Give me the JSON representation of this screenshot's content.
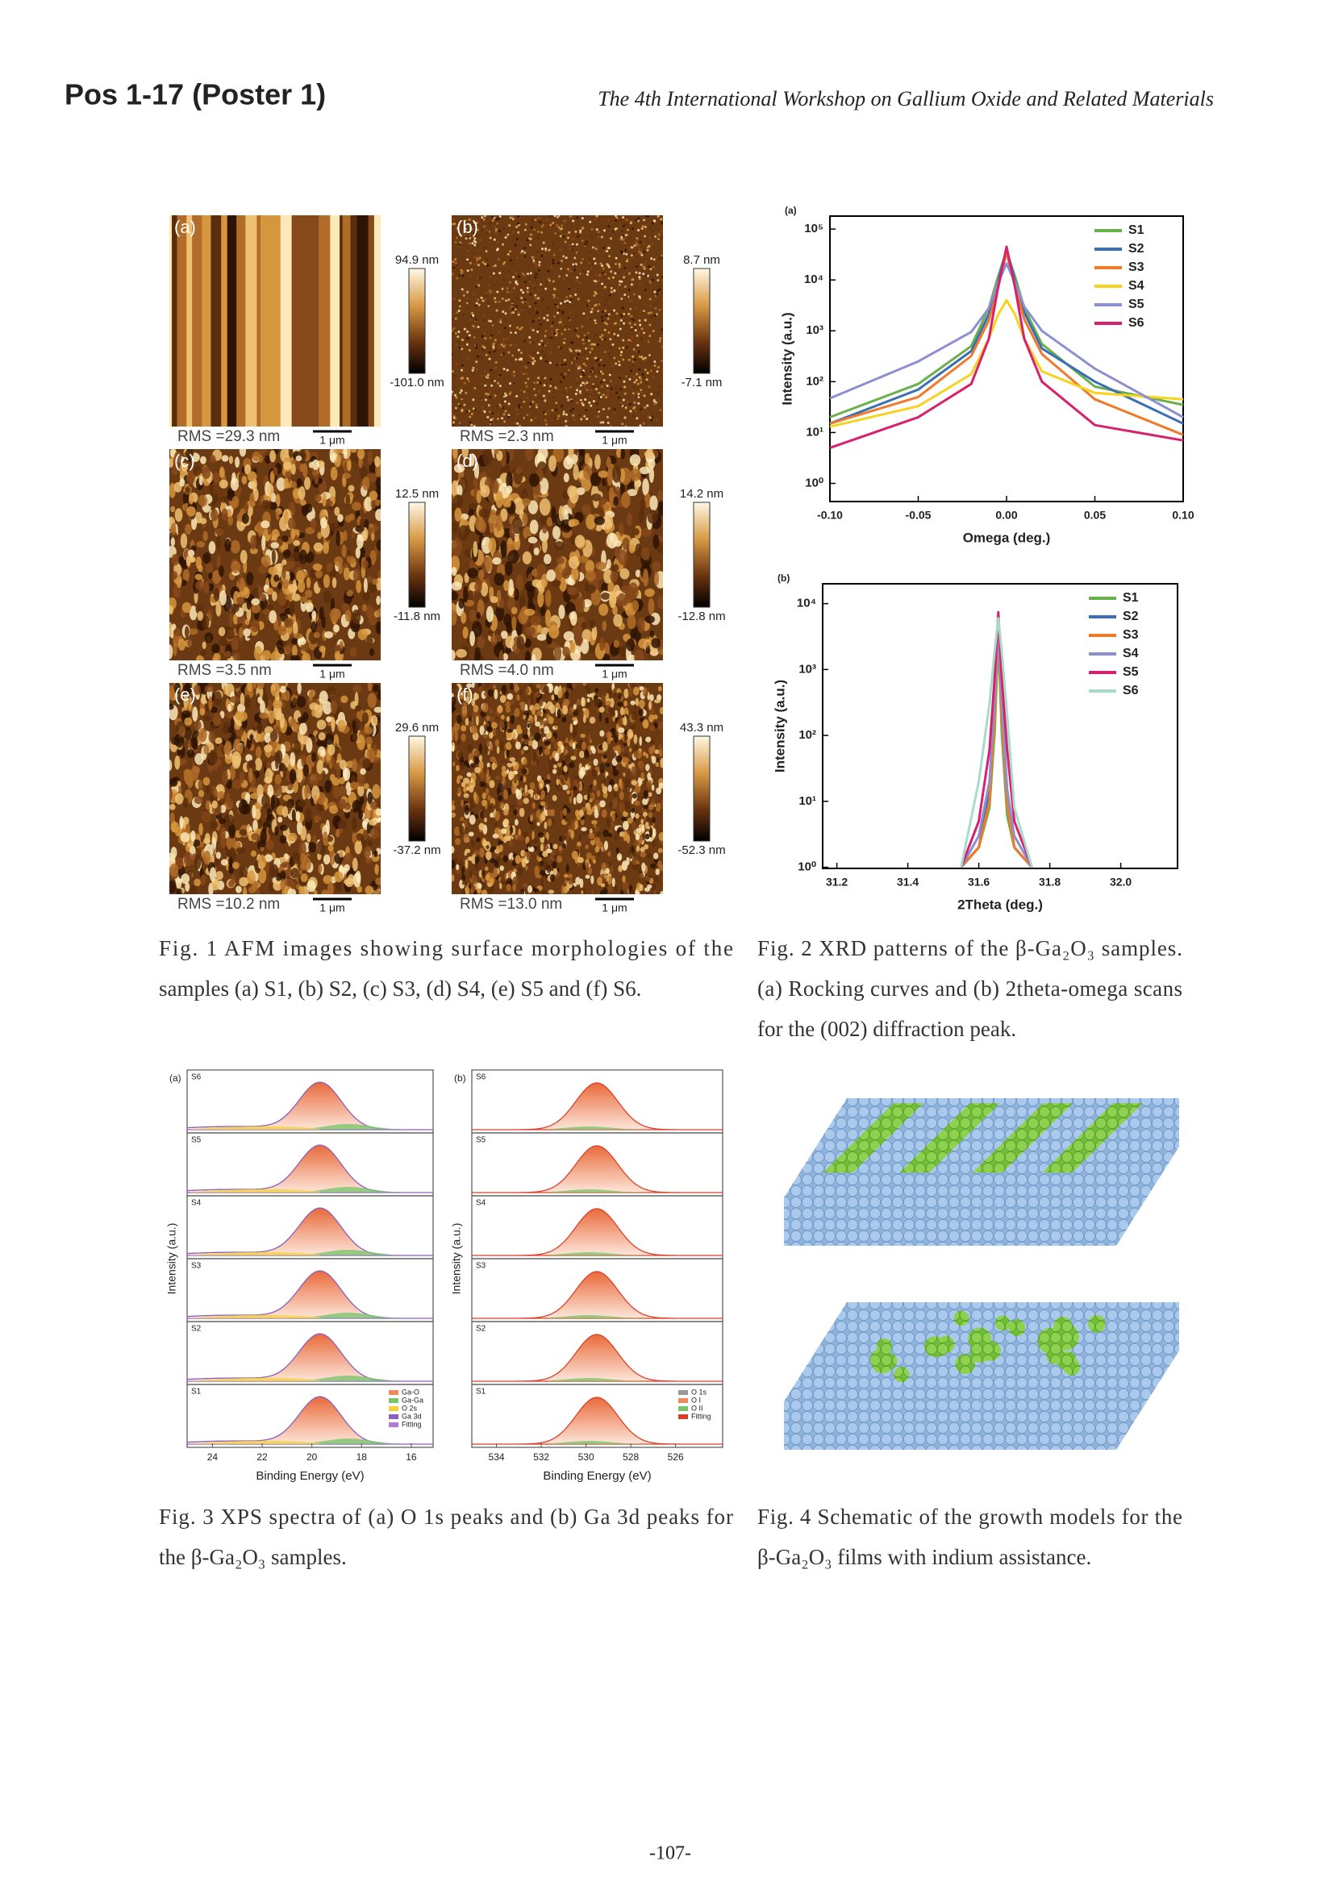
{
  "header": {
    "left": "Pos 1-17 (Poster 1)",
    "right": "The 4th International Workshop on Gallium Oxide and Related Materials"
  },
  "fig1": {
    "panels": [
      {
        "label": "(a)",
        "max": "94.9 nm",
        "min": "-101.0 nm",
        "rms": "RMS =29.3 nm",
        "scale": "1 μm"
      },
      {
        "label": "(b)",
        "max": "8.7 nm",
        "min": "-7.1 nm",
        "rms": "RMS =2.3 nm",
        "scale": "1 μm"
      },
      {
        "label": "(c)",
        "max": "12.5 nm",
        "min": "-11.8 nm",
        "rms": "RMS =3.5 nm",
        "scale": "1 μm"
      },
      {
        "label": "(d)",
        "max": "14.2 nm",
        "min": "-12.8 nm",
        "rms": "RMS =4.0 nm",
        "scale": "1 μm"
      },
      {
        "label": "(e)",
        "max": "29.6 nm",
        "min": "-37.2 nm",
        "rms": "RMS =10.2 nm",
        "scale": "1 μm"
      },
      {
        "label": "(f)",
        "max": "43.3 nm",
        "min": "-52.3 nm",
        "rms": "RMS =13.0 nm",
        "scale": "1 μm"
      }
    ],
    "caption": [
      "Fig. 1 AFM images showing surface morphologies of the",
      "samples (a) S1, (b) S2, (c) S3, (d) S4, (e) S5 and (f) S6."
    ]
  },
  "chart_data": [
    {
      "type": "line",
      "title": "(a)",
      "x_label": "Omega (deg.)",
      "y_label": "Intensity (a.u.)",
      "log_y": true,
      "legend": "upper right",
      "x": [
        -0.1,
        -0.05,
        -0.02,
        -0.01,
        -0.005,
        0,
        0.005,
        0.01,
        0.02,
        0.05,
        0.1
      ],
      "xlim": [
        -0.1,
        0.1
      ],
      "xticks": [
        {
          "value": -0.1,
          "label": "-0.10"
        },
        {
          "value": -0.05,
          "label": "-0.05"
        },
        {
          "value": 0,
          "label": "0.00"
        },
        {
          "value": 0.05,
          "label": "0.05"
        },
        {
          "value": 0.1,
          "label": "0.10"
        }
      ],
      "ylim": [
        0.44,
        180000
      ],
      "yticks": [
        {
          "value": 1,
          "label": "10⁰"
        },
        {
          "value": 10,
          "label": "10¹"
        },
        {
          "value": 100,
          "label": "10²"
        },
        {
          "value": 1000,
          "label": "10³"
        },
        {
          "value": 10000,
          "label": "10⁴"
        },
        {
          "value": 100000,
          "label": "10⁵"
        }
      ],
      "series": [
        {
          "name": "S1",
          "color": "#6ab04c",
          "values": [
            20,
            90,
            500,
            2800,
            11000,
            37000,
            11000,
            2800,
            550,
            80,
            35
          ]
        },
        {
          "name": "S2",
          "color": "#3a6fb5",
          "values": [
            15,
            70,
            400,
            2100,
            8500,
            40000,
            9000,
            2300,
            450,
            100,
            15
          ]
        },
        {
          "name": "S3",
          "color": "#f07a2a",
          "values": [
            15,
            50,
            320,
            1600,
            6500,
            35000,
            7000,
            1700,
            350,
            45,
            9
          ]
        },
        {
          "name": "S4",
          "color": "#f7d21e",
          "values": [
            13,
            33,
            140,
            700,
            2000,
            4000,
            2000,
            700,
            160,
            60,
            45
          ]
        },
        {
          "name": "S5",
          "color": "#8c8fd0",
          "values": [
            47,
            250,
            950,
            2800,
            8500,
            21000,
            8500,
            3000,
            1000,
            180,
            20
          ]
        },
        {
          "name": "S6",
          "color": "#d6216e",
          "values": [
            5,
            20,
            90,
            700,
            6500,
            45000,
            6500,
            700,
            100,
            14,
            7
          ]
        }
      ]
    },
    {
      "type": "line",
      "title": "(b)",
      "x_label": "2Theta (deg.)",
      "y_label": "Intensity (a.u.)",
      "log_y": true,
      "legend": "upper right",
      "x": [
        31.55,
        31.6,
        31.63,
        31.645,
        31.655,
        31.665,
        31.68,
        31.7,
        31.75
      ],
      "xlim": [
        31.16,
        32.16
      ],
      "xticks": [
        31.2,
        31.4,
        31.6,
        31.8,
        {
          "value": 32,
          "label": "32.0"
        }
      ],
      "ylim": [
        0.96,
        20000
      ],
      "yticks": [
        {
          "value": 1,
          "label": "10⁰"
        },
        {
          "value": 10,
          "label": "10¹"
        },
        {
          "value": 100,
          "label": "10²"
        },
        {
          "value": 1000,
          "label": "10³"
        },
        {
          "value": 10000,
          "label": "10⁴"
        }
      ],
      "series": [
        {
          "name": "S1",
          "color": "#6ab04c",
          "values": [
            1,
            2,
            8,
            120,
            3000,
            100,
            6,
            2,
            1
          ]
        },
        {
          "name": "S2",
          "color": "#3a6fb5",
          "values": [
            1,
            2,
            15,
            300,
            5000,
            250,
            12,
            2,
            1
          ]
        },
        {
          "name": "S3",
          "color": "#f07a2a",
          "values": [
            1,
            2,
            10,
            200,
            4000,
            180,
            9,
            2,
            1
          ]
        },
        {
          "name": "S4",
          "color": "#8c8fd0",
          "values": [
            1,
            3,
            20,
            400,
            4500,
            350,
            15,
            3,
            1
          ]
        },
        {
          "name": "S5",
          "color": "#d6216e",
          "values": [
            1,
            5,
            60,
            800,
            7400,
            700,
            60,
            5,
            1
          ]
        },
        {
          "name": "S6",
          "color": "#a8dcc8",
          "values": [
            1,
            20,
            300,
            2000,
            6000,
            1800,
            200,
            8,
            1
          ]
        }
      ]
    }
  ],
  "fig2": {
    "caption": [
      "Fig. 2 XRD patterns of the β-Ga₂O₃ samples.",
      "(a) Rocking curves and (b) 2theta-omega scans",
      "for the (002) diffraction peak."
    ]
  },
  "fig3": {
    "panels": [
      {
        "label": "(a)",
        "y_label": "Intensity (a.u.)",
        "x_label": "Binding Energy (eV)",
        "xlim": [
          25.02,
          15.12
        ],
        "xticks": [
          24,
          22,
          20,
          18,
          16
        ],
        "rows": [
          "S6",
          "S5",
          "S4",
          "S3",
          "S2",
          "S1"
        ],
        "legend": [
          "Ga-O",
          "Ga-Ga",
          "O 2s",
          "Ga 3d",
          "Fitting"
        ]
      },
      {
        "label": "(b)",
        "y_label": "Intensity (a.u.)",
        "x_label": "Binding Energy (eV)",
        "xlim": [
          535.1,
          523.9
        ],
        "xticks": [
          534,
          532,
          530,
          528,
          526
        ],
        "rows": [
          "S6",
          "S5",
          "S4",
          "S3",
          "S2",
          "S1"
        ],
        "legend": [
          "O 1s",
          "O I",
          "O II",
          "Fitting"
        ]
      }
    ],
    "caption": [
      "Fig. 3 XPS spectra of (a) O 1s peaks and (b) Ga 3d peaks for",
      "the β-Ga₂O₃ samples."
    ]
  },
  "fig4": {
    "caption": [
      "Fig. 4 Schematic of the growth models for the",
      "β-Ga₂O₃ films with indium assistance."
    ]
  },
  "page_number": "-107-"
}
